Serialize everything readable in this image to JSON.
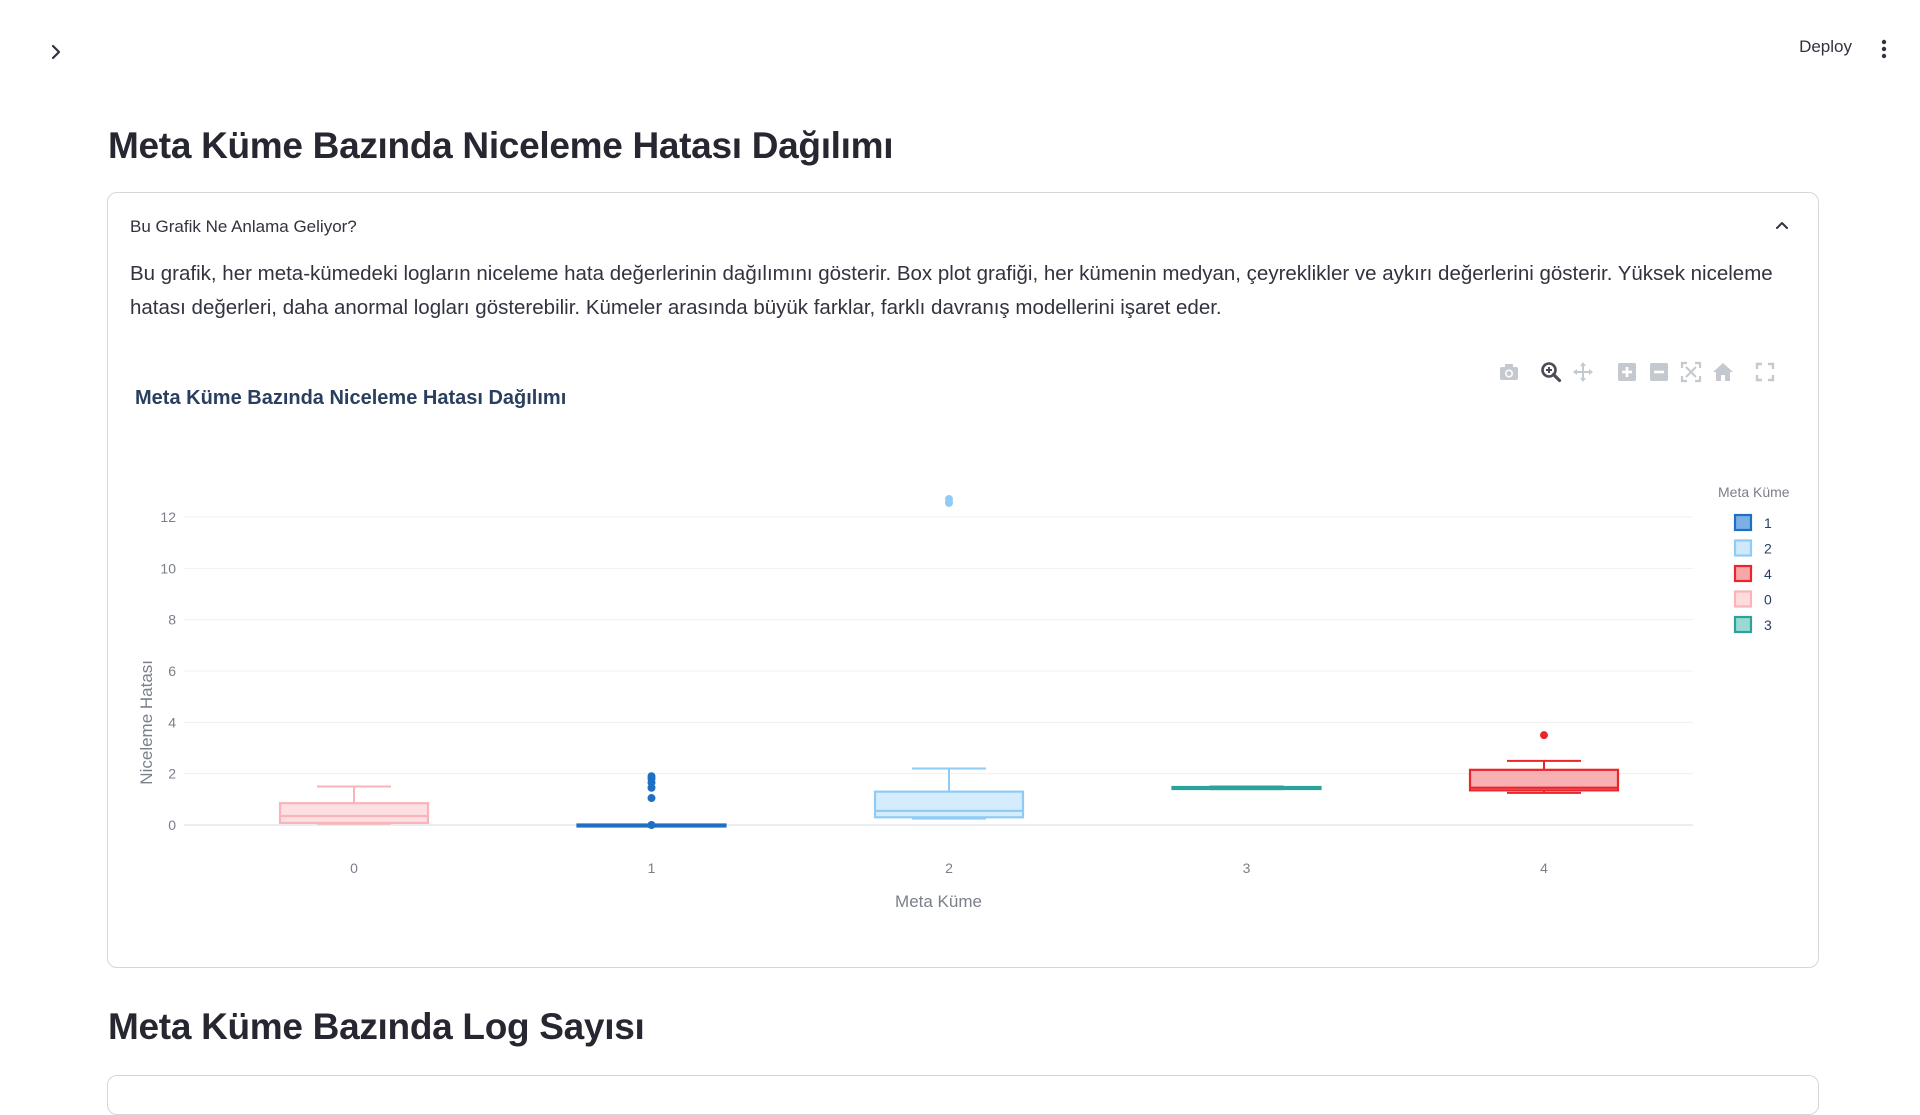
{
  "header": {
    "deploy_label": "Deploy",
    "sidebar_toggle_icon": "chevron-right-icon",
    "menu_icon": "vertical-dots-icon"
  },
  "section1": {
    "title": "Meta Küme Bazında Niceleme Hatası Dağılımı",
    "expander": {
      "label": "Bu Grafik Ne Anlama Geliyor?",
      "text": "Bu grafik, her meta-kümedeki logların niceleme hata değerlerinin dağılımını gösterir. Box plot grafiği, her kümenin medyan, çeyreklikler ve aykırı değerlerini gösterir. Yüksek niceleme hatası değerleri, daha anormal logları gösterebilir. Kümeler arasında büyük farklar, farklı davranış modellerini işaret eder."
    },
    "modebar": [
      "camera-icon",
      "zoom-icon",
      "pan-icon",
      "zoom-in-icon",
      "zoom-out-icon",
      "autoscale-icon",
      "reset-axes-icon",
      "fullscreen-icon"
    ]
  },
  "section2": {
    "title": "Meta Küme Bazında Log Sayısı"
  },
  "chart_data": {
    "type": "box",
    "title": "Meta Küme Bazında Niceleme Hatası Dağılımı",
    "xlabel": "Meta Küme",
    "ylabel": "Niceleme Hatası",
    "categories": [
      "0",
      "1",
      "2",
      "3",
      "4"
    ],
    "ylim": [
      -0.6,
      13.2
    ],
    "yticks": [
      0,
      2,
      4,
      6,
      8,
      10,
      12
    ],
    "grid": true,
    "legend_title": "Meta Küme",
    "legend_position": "right",
    "legend_order": [
      "1",
      "2",
      "4",
      "0",
      "3"
    ],
    "colors": {
      "0": {
        "line": "#f8b4b8",
        "fill": "#fcd3d5"
      },
      "1": {
        "line": "#1f6fc4",
        "fill": "#5b9be0"
      },
      "2": {
        "line": "#8fcbf5",
        "fill": "#c3e4fb"
      },
      "3": {
        "line": "#2ba39a",
        "fill": "#7fd1c8"
      },
      "4": {
        "line": "#e8262c",
        "fill": "#f59093"
      }
    },
    "series": [
      {
        "name": "0",
        "x": "0",
        "min": 0.05,
        "q1": 0.08,
        "median": 0.35,
        "q3": 0.85,
        "max": 1.5,
        "outliers": []
      },
      {
        "name": "1",
        "x": "1",
        "min": 0.0,
        "q1": 0.0,
        "median": 0.0,
        "q3": 0.02,
        "max": 0.02,
        "outliers": [
          0.0,
          1.05,
          1.45,
          1.65,
          1.8,
          1.9
        ]
      },
      {
        "name": "2",
        "x": "2",
        "min": 0.25,
        "q1": 0.3,
        "median": 0.55,
        "q3": 1.3,
        "max": 2.2,
        "outliers": [
          12.55,
          12.7
        ]
      },
      {
        "name": "3",
        "x": "3",
        "min": 1.4,
        "q1": 1.42,
        "median": 1.45,
        "q3": 1.48,
        "max": 1.5,
        "outliers": []
      },
      {
        "name": "4",
        "x": "4",
        "min": 1.25,
        "q1": 1.35,
        "median": 1.45,
        "q3": 2.15,
        "max": 2.5,
        "outliers": [
          3.5
        ]
      }
    ]
  }
}
